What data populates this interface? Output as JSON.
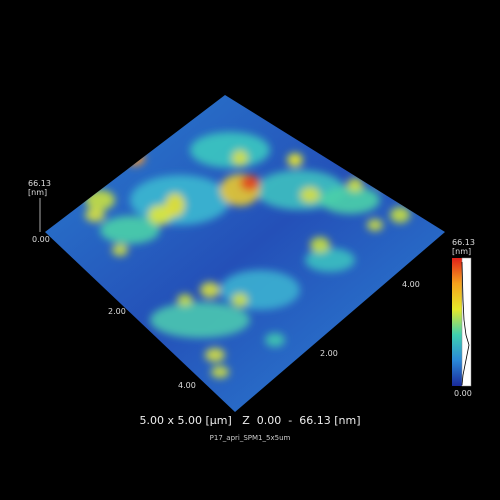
{
  "z_axis": {
    "max": "66.13",
    "unit": "[nm]",
    "min": "0.00"
  },
  "x_axis": {
    "ticks": [
      "2.00",
      "4.00"
    ]
  },
  "y_axis": {
    "ticks": [
      "2.00",
      "4.00"
    ]
  },
  "color_bar": {
    "max": "66.13",
    "unit": "[nm]",
    "min": "0.00"
  },
  "caption": "5.00 x 5.00 [µm]   Z  0.00  -  66.13 [nm]",
  "file_name": "P17_apri_SPM1_5x5um"
}
